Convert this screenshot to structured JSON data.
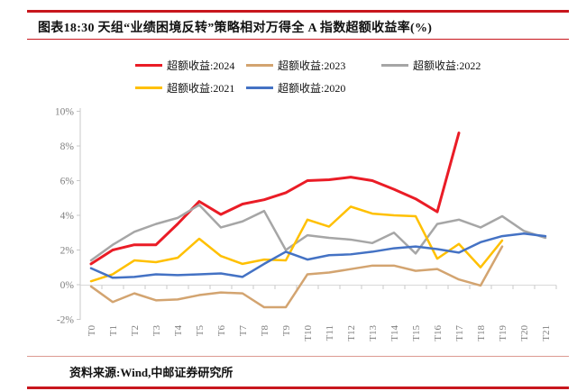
{
  "header": {
    "title": "图表18:30 天组“业绩困境反转”策略相对万得全 A 指数超额收益率(%)"
  },
  "footer": {
    "source": "资料来源:Wind,中邮证券研究所"
  },
  "colors": {
    "rule_red": "#c8161d",
    "rule_pink": "#dc9a92",
    "axis_line": "#c9c9c9",
    "zero_grid": "#d9d9d9",
    "axis_label": "#7f7f7f"
  },
  "legend": [
    {
      "label": "超额收益:2024",
      "color": "#ea1c26"
    },
    {
      "label": "超额收益:2023",
      "color": "#d3a470"
    },
    {
      "label": "超额收益:2022",
      "color": "#a6a6a6"
    },
    {
      "label": "超额收益:2021",
      "color": "#ffc000"
    },
    {
      "label": "超额收益:2020",
      "color": "#4472c4"
    }
  ],
  "chart_data": {
    "type": "line",
    "title": "图表18:30 天组“业绩困境反转”策略相对万得全 A 指数超额收益率(%)",
    "categories": [
      "T0",
      "T1",
      "T2",
      "T3",
      "T4",
      "T5",
      "T6",
      "T7",
      "T8",
      "T9",
      "T10",
      "T11",
      "T12",
      "T13",
      "T14",
      "T15",
      "T16",
      "T17",
      "T18",
      "T19",
      "T20",
      "T21"
    ],
    "xlabel": "",
    "ylabel": "",
    "ylim": [
      -2,
      10
    ],
    "y_ticks": [
      {
        "value": 10,
        "label": "10%"
      },
      {
        "value": 8,
        "label": "8%"
      },
      {
        "value": 6,
        "label": "6%"
      },
      {
        "value": 4,
        "label": "4%"
      },
      {
        "value": 2,
        "label": "2%"
      },
      {
        "value": 0,
        "label": "0%"
      },
      {
        "value": -2,
        "label": "-2%"
      }
    ],
    "grid": "zero-baseline-only",
    "legend_position": "top-center",
    "series": [
      {
        "name": "超额收益:2024",
        "color": "#ea1c26",
        "width": 3,
        "values": [
          1.2,
          2.0,
          2.3,
          2.3,
          3.5,
          4.8,
          4.05,
          4.65,
          4.9,
          5.3,
          6.0,
          6.05,
          6.2,
          6.0,
          5.5,
          4.95,
          4.2,
          8.75
        ]
      },
      {
        "name": "超额收益:2023",
        "color": "#d3a470",
        "width": 2.5,
        "values": [
          -0.1,
          -1.0,
          -0.5,
          -0.9,
          -0.85,
          -0.6,
          -0.45,
          -0.5,
          -1.3,
          -1.3,
          0.6,
          0.7,
          0.9,
          1.1,
          1.1,
          0.8,
          0.9,
          0.3,
          -0.05,
          2.2
        ]
      },
      {
        "name": "超额收益:2022",
        "color": "#a6a6a6",
        "width": 2.5,
        "values": [
          1.4,
          2.3,
          3.05,
          3.5,
          3.85,
          4.6,
          3.3,
          3.65,
          4.25,
          2.0,
          2.85,
          2.7,
          2.6,
          2.4,
          3.0,
          1.8,
          3.5,
          3.75,
          3.3,
          3.95,
          3.1,
          2.7
        ]
      },
      {
        "name": "超额收益:2021",
        "color": "#ffc000",
        "width": 2.5,
        "values": [
          0.2,
          0.6,
          1.4,
          1.3,
          1.55,
          2.65,
          1.65,
          1.2,
          1.45,
          1.4,
          3.75,
          3.35,
          4.5,
          4.1,
          4.0,
          3.95,
          1.5,
          2.35,
          1.0,
          2.55
        ]
      },
      {
        "name": "超额收益:2020",
        "color": "#4472c4",
        "width": 2.5,
        "values": [
          0.95,
          0.4,
          0.45,
          0.6,
          0.55,
          0.6,
          0.65,
          0.45,
          1.2,
          1.9,
          1.45,
          1.7,
          1.75,
          1.9,
          2.1,
          2.2,
          2.05,
          1.85,
          2.45,
          2.8,
          2.95,
          2.8
        ]
      }
    ]
  }
}
